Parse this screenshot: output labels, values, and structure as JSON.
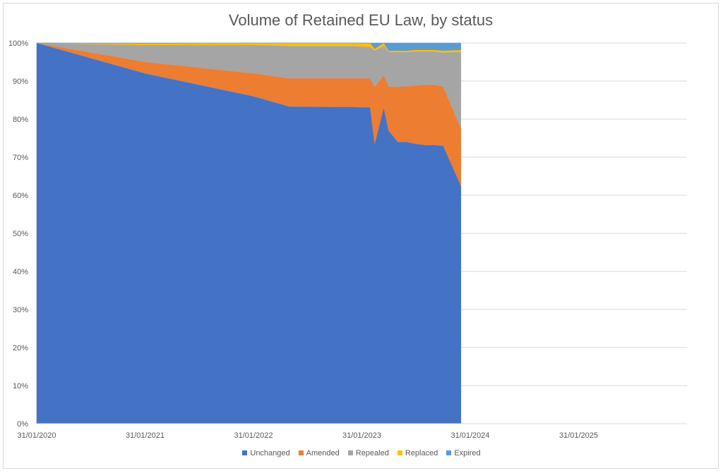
{
  "chart_data": {
    "type": "area",
    "stacked": "percent",
    "title": "Volume of Retained EU Law, by status",
    "xlabel": "",
    "ylabel": "",
    "x_ticks": [
      "31/01/2020",
      "31/01/2021",
      "31/01/2022",
      "31/01/2023",
      "31/01/2024",
      "31/01/2025"
    ],
    "y_ticks": [
      "0%",
      "10%",
      "20%",
      "30%",
      "40%",
      "50%",
      "60%",
      "70%",
      "80%",
      "90%",
      "100%"
    ],
    "xlim": [
      "2020-01-31",
      "2026-01-31"
    ],
    "ylim": [
      0,
      100
    ],
    "grid": "horizontal",
    "legend_position": "bottom",
    "x": [
      "2020-01-31",
      "2021-01-31",
      "2022-01-31",
      "2022-06-01",
      "2022-12-31",
      "2023-01-31",
      "2023-02-28",
      "2023-03-15",
      "2023-04-15",
      "2023-05-01",
      "2023-06-01",
      "2023-07-01",
      "2023-08-01",
      "2023-09-01",
      "2023-10-01",
      "2023-11-01",
      "2023-12-31"
    ],
    "series": [
      {
        "name": "Unchanged",
        "color": "#4472C4",
        "values": [
          100,
          92,
          86,
          83.3,
          83.2,
          83.1,
          83.1,
          73.5,
          83,
          77,
          74,
          74,
          73.5,
          73.2,
          73.2,
          73.0,
          62.5
        ]
      },
      {
        "name": "Amended",
        "color": "#ED7D31",
        "values": [
          0,
          3,
          6,
          7.4,
          7.5,
          7.6,
          7.6,
          15,
          8.5,
          11.5,
          14.5,
          14.6,
          15.3,
          15.8,
          15.8,
          15.5,
          15.0
        ]
      },
      {
        "name": "Repealed",
        "color": "#A5A5A5",
        "values": [
          0,
          4.5,
          7.5,
          8.5,
          8.5,
          8.4,
          8.3,
          9.5,
          7.8,
          9.2,
          9.1,
          9.0,
          9.0,
          8.8,
          8.8,
          9.0,
          20.2
        ]
      },
      {
        "name": "Replaced",
        "color": "#FFC000",
        "values": [
          0,
          0.4,
          0.5,
          0.8,
          0.8,
          0.9,
          1.0,
          0.5,
          0.7,
          0.3,
          0.4,
          0.4,
          0.4,
          0.4,
          0.4,
          0.5,
          0.5
        ]
      },
      {
        "name": "Expired",
        "color": "#5B9BD5",
        "values": [
          0,
          0.1,
          0,
          0,
          0,
          0,
          0,
          1.5,
          0,
          2.0,
          2.0,
          2.0,
          1.8,
          1.8,
          1.8,
          2.0,
          1.8
        ]
      }
    ]
  }
}
